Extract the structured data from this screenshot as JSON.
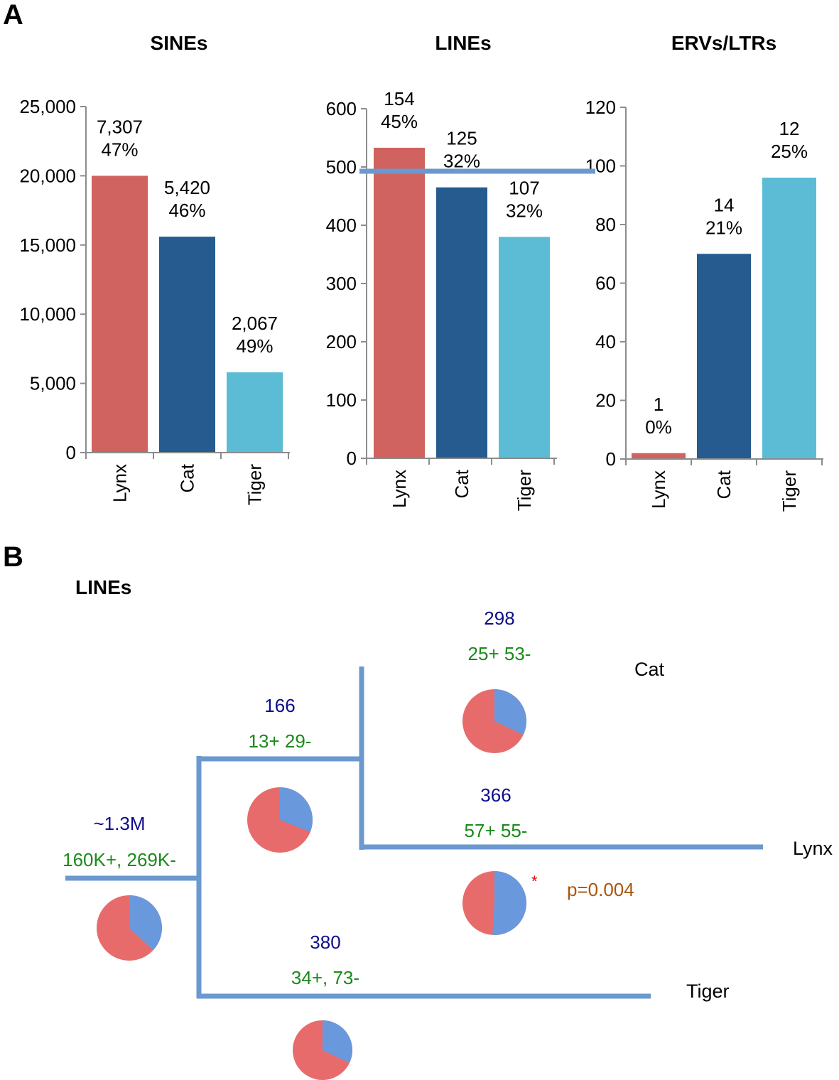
{
  "panel_a_label": "A",
  "panel_b_label": "B",
  "colors": {
    "lynx": "#d0635f",
    "cat": "#255b8f",
    "tiger": "#5cbcd6",
    "axis": "#8c8c8c",
    "branch": "#6a98cf",
    "pie_red": "#e86b6b",
    "pie_blue": "#6a98dd"
  },
  "chart_data": [
    {
      "type": "bar",
      "title": "SINEs",
      "categories": [
        "Lynx",
        "Cat",
        "Tiger"
      ],
      "values": [
        20000,
        15600,
        5800
      ],
      "ylim": [
        0,
        25000
      ],
      "yticks": [
        0,
        5000,
        10000,
        15000,
        20000,
        25000
      ],
      "ytick_labels": [
        "0",
        "5,000",
        "10,000",
        "15,000",
        "20,000",
        "25,000"
      ],
      "annotations": [
        [
          "7,307",
          "47%"
        ],
        [
          "5,420",
          "46%"
        ],
        [
          "2,067",
          "49%"
        ]
      ]
    },
    {
      "type": "bar",
      "title": "LINEs",
      "categories": [
        "Lynx",
        "Cat",
        "Tiger"
      ],
      "values": [
        533,
        465,
        380
      ],
      "ylim": [
        0,
        600
      ],
      "yticks": [
        0,
        100,
        200,
        300,
        400,
        500,
        600
      ],
      "ytick_labels": [
        "0",
        "100",
        "200",
        "300",
        "400",
        "500",
        "600"
      ],
      "annotations": [
        [
          "154",
          "45%"
        ],
        [
          "125",
          "32%"
        ],
        [
          "107",
          "32%"
        ]
      ]
    },
    {
      "type": "bar",
      "title": "ERVs/LTRs",
      "categories": [
        "Lynx",
        "Cat",
        "Tiger"
      ],
      "values": [
        2,
        70,
        96
      ],
      "ylim": [
        0,
        120
      ],
      "yticks": [
        0,
        20,
        40,
        60,
        80,
        100,
        120
      ],
      "ytick_labels": [
        "0",
        "20",
        "40",
        "60",
        "80",
        "100",
        "120"
      ],
      "annotations": [
        [
          "1",
          "0%"
        ],
        [
          "14",
          "21%"
        ],
        [
          "12",
          "25%"
        ]
      ]
    }
  ],
  "tree": {
    "title": "LINEs",
    "root": {
      "count": "~1.3M",
      "gain_loss": "160K+, 269K-",
      "pie_fraction_blue": 0.37
    },
    "ancestor": {
      "count": "166",
      "gain_loss": "13+ 29-",
      "pie_fraction_blue": 0.31
    },
    "cat": {
      "name": "Cat",
      "count": "298",
      "gain_loss": "25+ 53-",
      "pie_fraction_blue": 0.32
    },
    "lynx": {
      "name": "Lynx",
      "count": "366",
      "gain_loss": "57+ 55-",
      "pie_fraction_blue": 0.51,
      "star": "*",
      "pvalue": "p=0.004"
    },
    "tiger": {
      "name": "Tiger",
      "count": "380",
      "gain_loss": "34+, 73-",
      "pie_fraction_blue": 0.32
    }
  }
}
